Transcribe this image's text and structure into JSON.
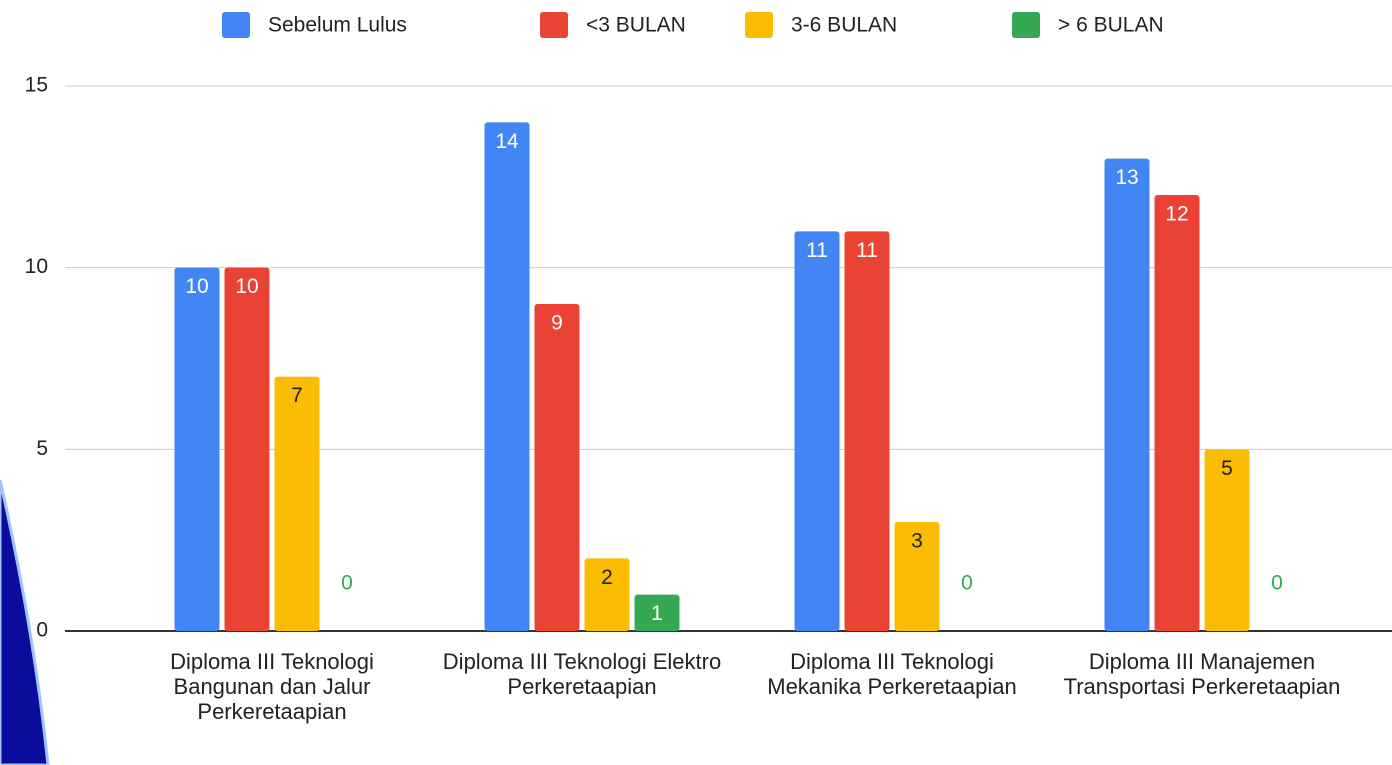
{
  "chart_data": {
    "type": "bar",
    "categories": [
      "Diploma III Teknologi Bangunan dan Jalur Perkeretaapian",
      "Diploma III Teknologi Elektro Perkeretaapian",
      "Diploma III Teknologi Mekanika Perkeretaapian",
      "Diploma III Manajemen Transportasi Perkeretaapian"
    ],
    "series": [
      {
        "name": "Sebelum Lulus",
        "color": "#4285f4",
        "values": [
          10,
          14,
          11,
          13
        ]
      },
      {
        "name": "<3 BULAN",
        "color": "#ea4335",
        "values": [
          10,
          9,
          11,
          12
        ]
      },
      {
        "name": "3-6 BULAN",
        "color": "#fbbc04",
        "values": [
          7,
          2,
          3,
          5
        ]
      },
      {
        "name": "> 6 BULAN",
        "color": "#34a853",
        "values": [
          0,
          1,
          0,
          0
        ]
      }
    ],
    "ylim": [
      0,
      15
    ],
    "yticks": [
      0,
      5,
      10,
      15
    ],
    "grid": true,
    "legend": "top"
  }
}
